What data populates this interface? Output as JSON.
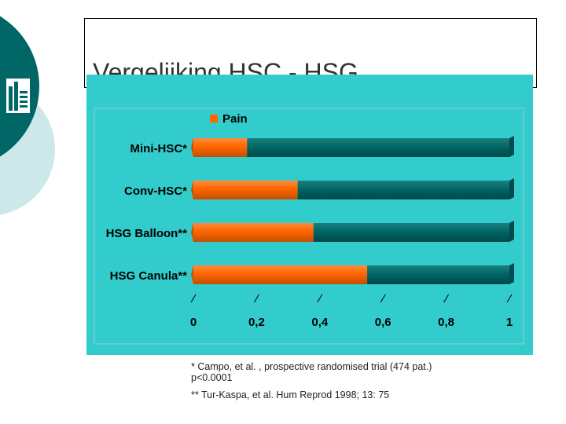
{
  "slide": {
    "title": "Vergelijking HSC - HSG",
    "footnotes": [
      "* Campo, et al. , prospective randomised trial (474 pat.)",
      "p<0.0001",
      "** Tur-Kaspa, et al. Hum Reprod 1998; 13: 75"
    ]
  },
  "colors": {
    "panel_bg": "#33CCCC",
    "pain_bar": "#FF6600",
    "rest_bar": "#006666",
    "teal_circle": "#006666",
    "light_circle": "#CCE8E8"
  },
  "icons": {
    "logo": "building-logo-icon"
  },
  "chart_data": {
    "type": "bar",
    "orientation": "horizontal",
    "stacked": true,
    "categories": [
      "Mini-HSC*",
      "Conv-HSC*",
      "HSG Balloon**",
      "HSG Canula**"
    ],
    "series": [
      {
        "name": "Pain",
        "values": [
          0.17,
          0.33,
          0.38,
          0.55
        ]
      },
      {
        "values": [
          0.83,
          0.67,
          0.62,
          0.45
        ]
      }
    ],
    "xlim": [
      0,
      1
    ],
    "xticks": [
      "0",
      "0,2",
      "0,4",
      "0,6",
      "0,8",
      "1"
    ],
    "legend": {
      "position": "top",
      "entries": [
        "Pain"
      ]
    },
    "grid": false
  }
}
